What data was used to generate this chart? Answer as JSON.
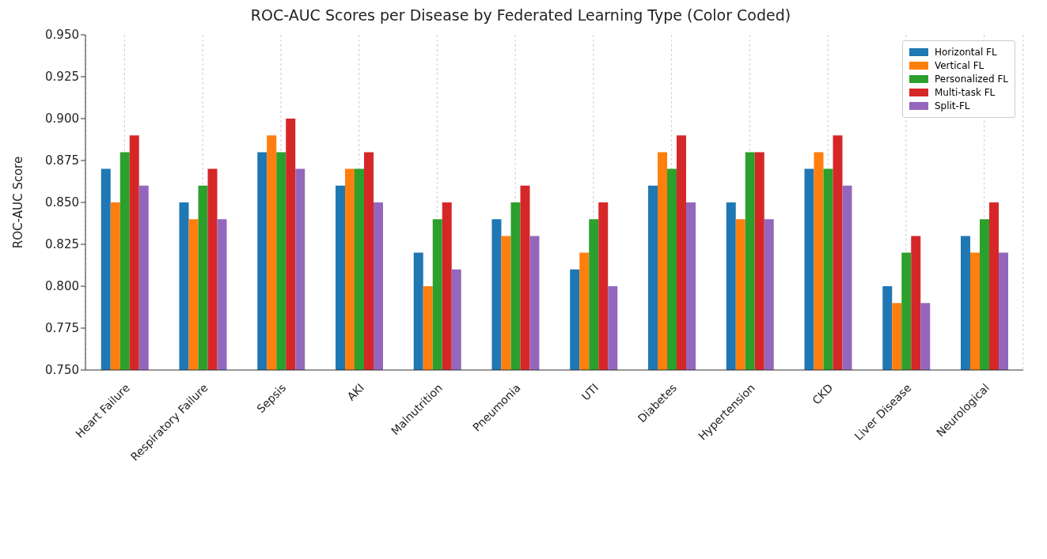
{
  "chart_data": {
    "type": "bar",
    "title": "ROC-AUC Scores per Disease by Federated Learning Type (Color Coded)",
    "ylabel": "ROC-AUC Score",
    "categories": [
      "Heart Failure",
      "Respiratory Failure",
      "Sepsis",
      "AKI",
      "Malnutrition",
      "Pneumonia",
      "UTI",
      "Diabetes",
      "Hypertension",
      "CKD",
      "Liver Disease",
      "Neurological"
    ],
    "series": [
      {
        "name": "Horizontal FL",
        "color": "#1f77b4",
        "values": [
          0.87,
          0.85,
          0.88,
          0.86,
          0.82,
          0.84,
          0.81,
          0.86,
          0.85,
          0.87,
          0.8,
          0.83
        ]
      },
      {
        "name": "Vertical FL",
        "color": "#ff7f0e",
        "values": [
          0.85,
          0.84,
          0.89,
          0.87,
          0.8,
          0.83,
          0.82,
          0.88,
          0.84,
          0.88,
          0.79,
          0.82
        ]
      },
      {
        "name": "Personalized FL",
        "color": "#2ca02c",
        "values": [
          0.88,
          0.86,
          0.88,
          0.87,
          0.84,
          0.85,
          0.84,
          0.87,
          0.88,
          0.87,
          0.82,
          0.84
        ]
      },
      {
        "name": "Multi-task FL",
        "color": "#d62728",
        "values": [
          0.89,
          0.87,
          0.9,
          0.88,
          0.85,
          0.86,
          0.85,
          0.89,
          0.88,
          0.89,
          0.83,
          0.85
        ]
      },
      {
        "name": "Split-FL",
        "color": "#9467bd",
        "values": [
          0.86,
          0.84,
          0.87,
          0.85,
          0.81,
          0.83,
          0.8,
          0.85,
          0.84,
          0.86,
          0.79,
          0.82
        ]
      }
    ],
    "ylim": [
      0.75,
      0.95
    ],
    "yticks": [
      {
        "value": 0.75,
        "label": "0.750"
      },
      {
        "value": 0.775,
        "label": "0.775"
      },
      {
        "value": 0.8,
        "label": "0.800"
      },
      {
        "value": 0.825,
        "label": "0.825"
      },
      {
        "value": 0.85,
        "label": "0.850"
      },
      {
        "value": 0.875,
        "label": "0.875"
      },
      {
        "value": 0.9,
        "label": "0.900"
      },
      {
        "value": 0.925,
        "label": "0.925"
      },
      {
        "value": 0.95,
        "label": "0.950"
      }
    ],
    "grid": "x",
    "legend": "top right"
  }
}
